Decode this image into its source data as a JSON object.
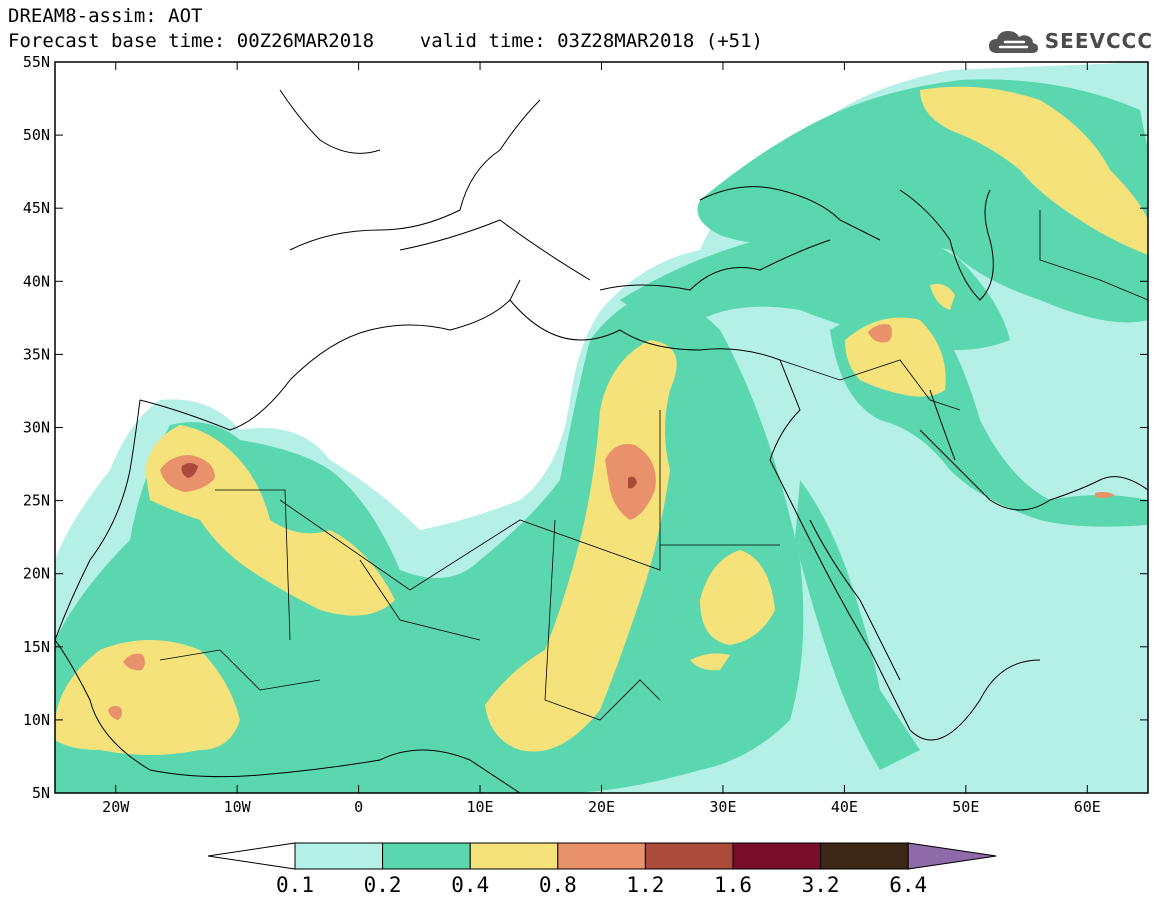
{
  "header": {
    "line1": "DREAM8-assim: AOT",
    "line2": "Forecast base time: 00Z26MAR2018    valid time: 03Z28MAR2018 (+51)"
  },
  "logo": {
    "text": "SEEVCCC",
    "icon": "cloud-icon"
  },
  "map": {
    "lon_range": [
      -25,
      65
    ],
    "lat_range": [
      5,
      55
    ],
    "lat_ticks": [
      {
        "value": 55,
        "label": "55N"
      },
      {
        "value": 50,
        "label": "50N"
      },
      {
        "value": 45,
        "label": "45N"
      },
      {
        "value": 40,
        "label": "40N"
      },
      {
        "value": 35,
        "label": "35N"
      },
      {
        "value": 30,
        "label": "30N"
      },
      {
        "value": 25,
        "label": "25N"
      },
      {
        "value": 20,
        "label": "20N"
      },
      {
        "value": 15,
        "label": "15N"
      },
      {
        "value": 10,
        "label": "10N"
      },
      {
        "value": 5,
        "label": "5N"
      }
    ],
    "lon_ticks": [
      {
        "value": -20,
        "label": "20W"
      },
      {
        "value": -10,
        "label": "10W"
      },
      {
        "value": 0,
        "label": "0"
      },
      {
        "value": 10,
        "label": "10E"
      },
      {
        "value": 20,
        "label": "20E"
      },
      {
        "value": 30,
        "label": "30E"
      },
      {
        "value": 40,
        "label": "40E"
      },
      {
        "value": 50,
        "label": "50E"
      },
      {
        "value": 60,
        "label": "60E"
      }
    ]
  },
  "colorbar": {
    "low_color": "#ffffff",
    "high_color": "#8e6aa8",
    "bins": [
      {
        "color": "#b4f0e6"
      },
      {
        "color": "#5ad7ae"
      },
      {
        "color": "#f5e27a"
      },
      {
        "color": "#e8916a"
      },
      {
        "color": "#a94a3b"
      },
      {
        "color": "#7a0e2a"
      },
      {
        "color": "#3c2616"
      }
    ],
    "labels": [
      "0.1",
      "0.2",
      "0.4",
      "0.8",
      "1.2",
      "1.6",
      "3.2",
      "6.4"
    ]
  },
  "colors": {
    "c01": "#b4f0e6",
    "c02": "#5ad7ae",
    "c04": "#f5e27a",
    "c08": "#e8916a",
    "c12": "#a94a3b",
    "c16": "#7a0e2a"
  }
}
